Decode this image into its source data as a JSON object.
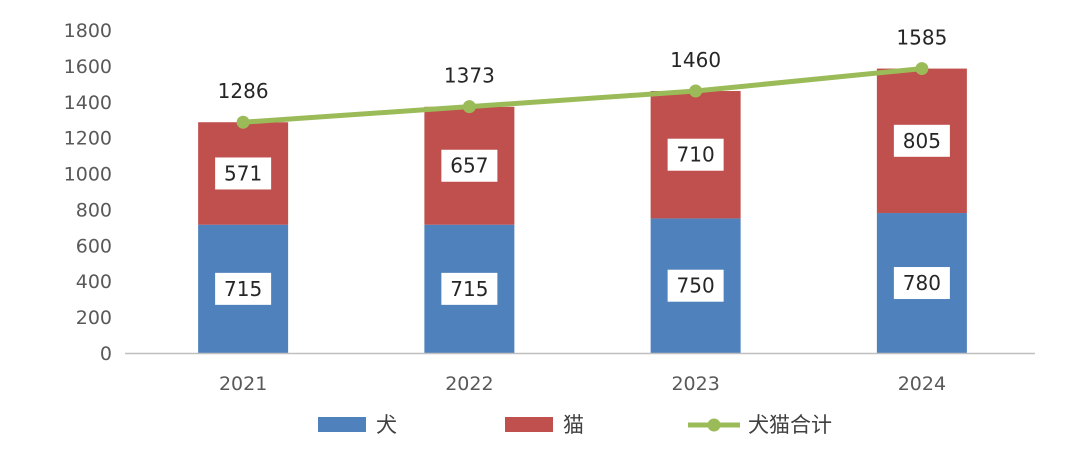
{
  "chart_data": {
    "type": "bar",
    "stacked": true,
    "categories": [
      "2021",
      "2022",
      "2023",
      "2024"
    ],
    "series": [
      {
        "name": "犬",
        "type": "bar",
        "color": "#4F81BD",
        "values": [
          715,
          715,
          750,
          780
        ]
      },
      {
        "name": "猫",
        "type": "bar",
        "color": "#C0504D",
        "values": [
          571,
          657,
          710,
          805
        ]
      },
      {
        "name": "犬猫合计",
        "type": "line",
        "color": "#9BBB59",
        "values": [
          1286,
          1373,
          1460,
          1585
        ]
      }
    ],
    "title": "",
    "xlabel": "",
    "ylabel": "",
    "ylim": [
      0,
      1800
    ],
    "yticks": [
      0,
      200,
      400,
      600,
      800,
      1000,
      1200,
      1400,
      1600,
      1800
    ],
    "grid": false,
    "legend_position": "bottom",
    "colors": {
      "axis": "#BFBFBF",
      "tick_text": "#595959",
      "label_box": "#FFFFFF"
    }
  }
}
